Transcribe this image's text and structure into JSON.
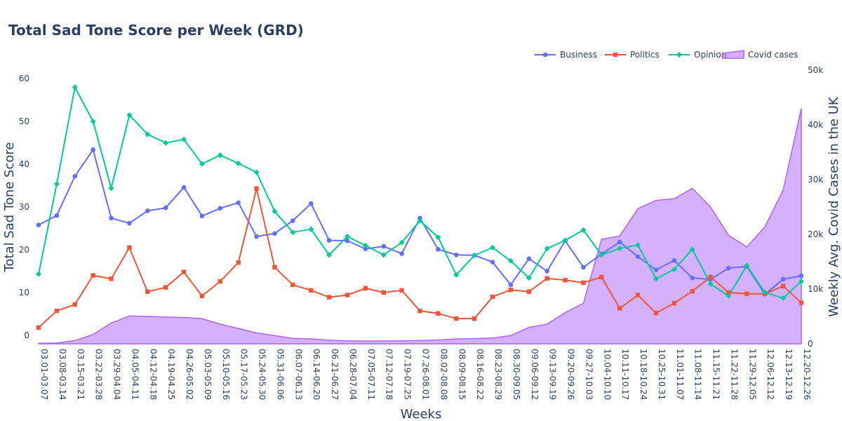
{
  "chart_data": {
    "type": "line",
    "title": "Total Sad Tone Score per Week (GRD)",
    "xlabel": "Weeks",
    "ylabel": "Total Sad Tone Score",
    "y2label": "Weekly Avg. Covid Cases in the UK",
    "ylim": [
      -2,
      62
    ],
    "y2lim": [
      0,
      50000
    ],
    "yticks": [
      0,
      10,
      20,
      30,
      40,
      50,
      60
    ],
    "y2ticks": [
      0,
      10000,
      20000,
      30000,
      40000,
      50000
    ],
    "y2ticklabels": [
      "0",
      "10k",
      "20k",
      "30k",
      "40k",
      "50k"
    ],
    "legend_position": "top-right",
    "grid": false,
    "categories": [
      "03.01-03.07",
      "03.08-03.14",
      "03.15-03.21",
      "03.22-03.28",
      "03.29-04.04",
      "04.05-04.11",
      "04.12-04.18",
      "04.19-04.25",
      "04.26-05.02",
      "05.03-05.09",
      "05.10-05.16",
      "05.17-05.23",
      "05.24-05.30",
      "05.31-06.06",
      "06.07-06.13",
      "06.14-06.20",
      "06.21-06.27",
      "06.28-07.04",
      "07.05-07.11",
      "07.12-07.18",
      "07.19-07.25",
      "07.26-08.01",
      "08.02-08.08",
      "08.09-08.15",
      "08.16-08.22",
      "08.23-08.29",
      "08.30-09.05",
      "09.06-09.12",
      "09.13-09.19",
      "09.20-09.26",
      "09.27-10.03",
      "10.04-10.10",
      "10.11-10.17",
      "10.18-10.24",
      "10.25-10.31",
      "11.01-11.07",
      "11.08-11.14",
      "11.15-11.21",
      "11.22-11.28",
      "11.29-12.05",
      "12.06-12.12",
      "12.13-12.19",
      "12.20-12.26"
    ],
    "series": [
      {
        "name": "Business",
        "axis": "y",
        "color": "#636efa",
        "marker": "circle",
        "values": [
          25.8,
          28,
          37.2,
          43.4,
          27.4,
          26.2,
          29.1,
          29.8,
          34.6,
          27.9,
          29.7,
          31,
          23.1,
          23.8,
          26.8,
          30.8,
          22.2,
          22.1,
          20.2,
          20.8,
          19.1,
          27.4,
          20.1,
          18.8,
          18.7,
          17.1,
          11.8,
          17.9,
          15,
          22.1,
          15.9,
          19,
          21.8,
          18.4,
          15.3,
          17.5,
          13.4,
          13.1,
          15.7,
          16.1,
          9.6,
          13.1,
          13.9
        ]
      },
      {
        "name": "Politics",
        "axis": "y",
        "color": "#ef553b",
        "marker": "square",
        "values": [
          1.8,
          5.7,
          7.2,
          14,
          13.2,
          20.5,
          10.2,
          11.2,
          14.8,
          9.2,
          12.6,
          17,
          34.3,
          15.9,
          11.8,
          10.5,
          8.9,
          9.4,
          11,
          10,
          10.5,
          5.7,
          5.1,
          3.9,
          3.9,
          9,
          10.6,
          10.2,
          13.3,
          12.9,
          12.3,
          13.6,
          6.3,
          9.4,
          5.2,
          7.5,
          10.3,
          13.6,
          10,
          9.7,
          9.7,
          11.5,
          7.6
        ]
      },
      {
        "name": "Opinion",
        "axis": "y",
        "color": "#00cc96",
        "marker": "diamond",
        "values": [
          14.3,
          35.4,
          58,
          50,
          34.4,
          51.5,
          47,
          45,
          45.8,
          40.1,
          42.1,
          40.2,
          38.1,
          29,
          24.1,
          24.8,
          18.8,
          23.1,
          21,
          18.8,
          21.7,
          26.8,
          22.9,
          14.1,
          18.7,
          20.5,
          17.4,
          13.4,
          20.3,
          22.2,
          24.6,
          18.8,
          20.3,
          21.1,
          13.2,
          15.4,
          20.1,
          12,
          9.2,
          16.3,
          10,
          8.7,
          12.6
        ]
      },
      {
        "name": "Covid cases",
        "axis": "y2",
        "color": "#ab63fa",
        "type": "area",
        "values": [
          100,
          150,
          600,
          1700,
          3800,
          5100,
          5000,
          4900,
          4800,
          4600,
          3600,
          2800,
          2000,
          1500,
          1000,
          900,
          650,
          550,
          500,
          520,
          560,
          600,
          700,
          900,
          950,
          1050,
          1500,
          3000,
          3600,
          5700,
          7400,
          19100,
          19700,
          24700,
          26200,
          26500,
          28400,
          25000,
          19800,
          17700,
          21400,
          28100,
          43000
        ]
      }
    ]
  }
}
